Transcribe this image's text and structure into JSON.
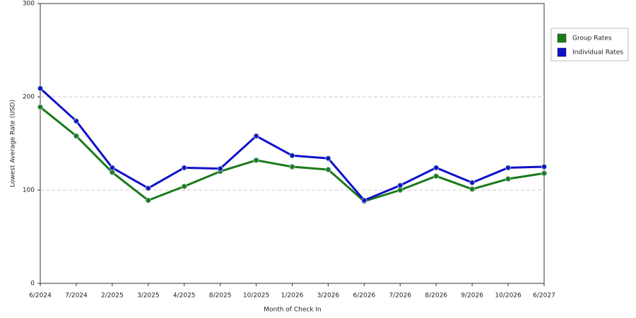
{
  "chart_data": {
    "type": "line",
    "x_label": "Month of Check In",
    "y_label": "Lowest Average Rate (USD)",
    "categories": [
      "6/2024",
      "7/2024",
      "2/2025",
      "3/2025",
      "4/2025",
      "8/2025",
      "10/2025",
      "1/2026",
      "3/2026",
      "6/2026",
      "7/2026",
      "8/2026",
      "9/2026",
      "10/2026",
      "6/2027"
    ],
    "series": [
      {
        "name": "Group Rates",
        "color": "#1a7a1a",
        "values": [
          189,
          158,
          119,
          89,
          104,
          120,
          132,
          125,
          122,
          88,
          100,
          115,
          101,
          112,
          118
        ]
      },
      {
        "name": "Individual Rates",
        "color": "#1010c8",
        "values": [
          209,
          174,
          124,
          102,
          124,
          123,
          158,
          137,
          134,
          89,
          105,
          124,
          108,
          124,
          125
        ]
      }
    ],
    "ylim": [
      0,
      300
    ],
    "yticks": [
      0,
      100,
      200,
      300
    ],
    "grid": true,
    "legend": "right"
  }
}
